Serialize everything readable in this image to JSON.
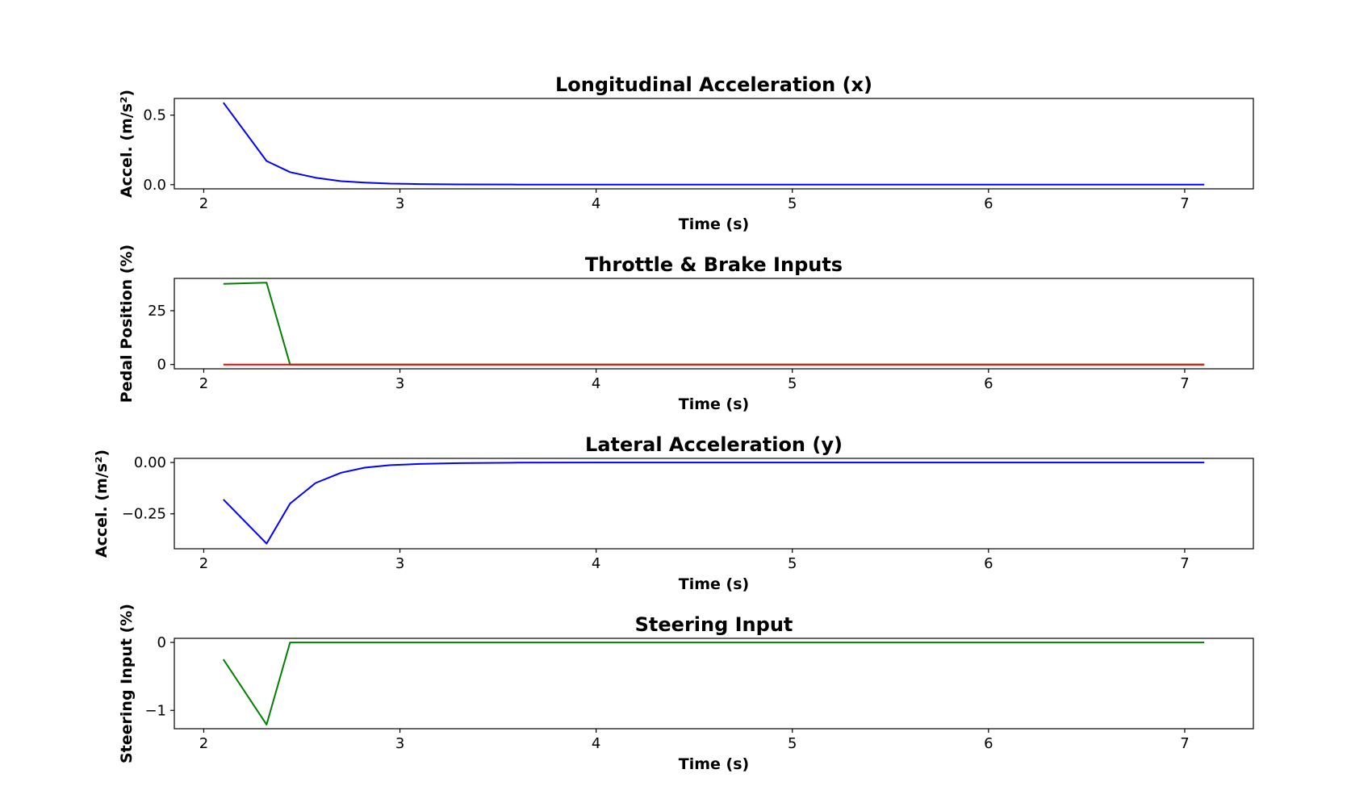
{
  "chart_data": [
    {
      "type": "line",
      "title": "Longitudinal Acceleration (x)",
      "xlabel": "Time (s)",
      "ylabel": "Accel. (m/s²)",
      "xlim": [
        1.85,
        7.35
      ],
      "ylim": [
        -0.03,
        0.62
      ],
      "xticks": [
        2,
        3,
        4,
        5,
        6,
        7
      ],
      "xtick_labels": [
        "2",
        "3",
        "4",
        "5",
        "6",
        "7"
      ],
      "yticks": [
        0.0,
        0.5
      ],
      "ytick_labels": [
        "0.0",
        "0.5"
      ],
      "grid": false,
      "series": [
        {
          "color": "#0000ff",
          "x": [
            2.1,
            2.32,
            2.44,
            2.57,
            2.7,
            2.82,
            2.95,
            3.1,
            3.3,
            3.6,
            4.0,
            5.0,
            6.0,
            7.1
          ],
          "y": [
            0.59,
            0.17,
            0.09,
            0.05,
            0.025,
            0.015,
            0.008,
            0.004,
            0.002,
            0.001,
            0.0,
            0.0,
            0.0,
            0.0
          ]
        }
      ]
    },
    {
      "type": "line",
      "title": "Throttle & Brake Inputs",
      "xlabel": "Time (s)",
      "ylabel": "Pedal Position (%)",
      "xlim": [
        1.85,
        7.35
      ],
      "ylim": [
        -2,
        40
      ],
      "xticks": [
        2,
        3,
        4,
        5,
        6,
        7
      ],
      "xtick_labels": [
        "2",
        "3",
        "4",
        "5",
        "6",
        "7"
      ],
      "yticks": [
        0,
        25
      ],
      "ytick_labels": [
        "0",
        "25"
      ],
      "grid": false,
      "series": [
        {
          "color": "#008000",
          "x": [
            2.1,
            2.32,
            2.44,
            2.57,
            7.1
          ],
          "y": [
            37.5,
            38.0,
            0.0,
            0.0,
            0.0
          ]
        },
        {
          "color": "#ff0000",
          "x": [
            2.1,
            7.1
          ],
          "y": [
            0.0,
            0.0
          ]
        }
      ]
    },
    {
      "type": "line",
      "title": "Lateral Acceleration (y)",
      "xlabel": "Time (s)",
      "ylabel": "Accel.  (m/s²)",
      "xlim": [
        1.85,
        7.35
      ],
      "ylim": [
        -0.42,
        0.02
      ],
      "xticks": [
        2,
        3,
        4,
        5,
        6,
        7
      ],
      "xtick_labels": [
        "2",
        "3",
        "4",
        "5",
        "6",
        "7"
      ],
      "yticks": [
        0.0,
        -0.25
      ],
      "ytick_labels": [
        "0.00",
        "−0.25"
      ],
      "grid": false,
      "series": [
        {
          "color": "#0000ff",
          "x": [
            2.1,
            2.32,
            2.44,
            2.57,
            2.7,
            2.82,
            2.95,
            3.1,
            3.3,
            3.6,
            4.0,
            5.0,
            6.0,
            7.1
          ],
          "y": [
            -0.18,
            -0.395,
            -0.2,
            -0.1,
            -0.05,
            -0.025,
            -0.013,
            -0.007,
            -0.003,
            -0.001,
            0.0,
            0.0,
            0.0,
            0.0
          ]
        }
      ]
    },
    {
      "type": "line",
      "title": "Steering Input",
      "xlabel": "Time (s)",
      "ylabel": "Steering Input (%)",
      "xlim": [
        1.85,
        7.35
      ],
      "ylim": [
        -1.27,
        0.06
      ],
      "xticks": [
        2,
        3,
        4,
        5,
        6,
        7
      ],
      "xtick_labels": [
        "2",
        "3",
        "4",
        "5",
        "6",
        "7"
      ],
      "yticks": [
        0,
        -1
      ],
      "ytick_labels": [
        "0",
        "−1"
      ],
      "grid": false,
      "series": [
        {
          "color": "#008000",
          "x": [
            2.1,
            2.32,
            2.44,
            2.57,
            7.1
          ],
          "y": [
            -0.25,
            -1.21,
            0.0,
            0.0,
            0.0
          ]
        }
      ]
    }
  ]
}
